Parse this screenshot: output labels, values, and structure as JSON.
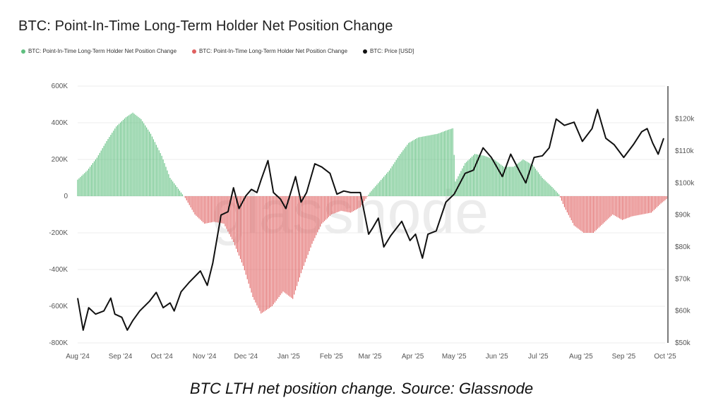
{
  "title": "BTC: Point-In-Time Long-Term Holder Net Position Change",
  "caption": "BTC LTH net position change. Source: Glassnode",
  "watermark": "glassnode",
  "colors": {
    "positive": "#5fbf7f",
    "negative": "#e06060",
    "price": "#111111"
  },
  "chart_data": {
    "type": "bar",
    "title": "BTC: Point-In-Time Long-Term Holder Net Position Change",
    "x_ticks": [
      "Aug '24",
      "Sep '24",
      "Oct '24",
      "Nov '24",
      "Dec '24",
      "Jan '25",
      "Feb '25",
      "Mar '25",
      "Apr '25",
      "May '25",
      "Jun '25",
      "Jul '25",
      "Aug '25",
      "Sep '25",
      "Oct '25"
    ],
    "left_axis": {
      "ticks": [
        "600K",
        "400K",
        "200K",
        "0",
        "-200K",
        "-400K",
        "-600K",
        "-800K"
      ],
      "range": [
        -800000,
        600000
      ]
    },
    "right_axis": {
      "ticks": [
        "$120k",
        "$110k",
        "$100k",
        "$90k",
        "$80k",
        "$70k",
        "$60k",
        "$50k"
      ],
      "range": [
        50000,
        125000
      ]
    },
    "legend": [
      "BTC: Point-In-Time Long-Term Holder Net Position Change",
      "BTC: Point-In-Time Long-Term Holder Net Position Change",
      "BTC: Price [USD]"
    ],
    "legend_position": "top-left",
    "grid": true,
    "series": [
      {
        "name": "BTC: Point-In-Time Long-Term Holder Net Position Change",
        "axis": "left",
        "points": [
          [
            "2024-08-01",
            90000
          ],
          [
            "2024-08-08",
            140000
          ],
          [
            "2024-08-15",
            210000
          ],
          [
            "2024-08-22",
            300000
          ],
          [
            "2024-08-29",
            380000
          ],
          [
            "2024-09-05",
            430000
          ],
          [
            "2024-09-10",
            455000
          ],
          [
            "2024-09-16",
            420000
          ],
          [
            "2024-09-23",
            340000
          ],
          [
            "2024-10-01",
            220000
          ],
          [
            "2024-10-07",
            100000
          ],
          [
            "2024-10-14",
            30000
          ],
          [
            "2024-10-18",
            -10000
          ],
          [
            "2024-10-25",
            -100000
          ],
          [
            "2024-11-01",
            -150000
          ],
          [
            "2024-11-08",
            -140000
          ],
          [
            "2024-11-15",
            -150000
          ],
          [
            "2024-11-22",
            -250000
          ],
          [
            "2024-11-29",
            -380000
          ],
          [
            "2024-12-06",
            -550000
          ],
          [
            "2024-12-12",
            -640000
          ],
          [
            "2024-12-20",
            -600000
          ],
          [
            "2024-12-28",
            -520000
          ],
          [
            "2025-01-04",
            -560000
          ],
          [
            "2025-01-10",
            -420000
          ],
          [
            "2025-01-18",
            -260000
          ],
          [
            "2025-01-25",
            -150000
          ],
          [
            "2025-02-01",
            -100000
          ],
          [
            "2025-02-08",
            -80000
          ],
          [
            "2025-02-15",
            -90000
          ],
          [
            "2025-02-22",
            -60000
          ],
          [
            "2025-03-01",
            20000
          ],
          [
            "2025-03-08",
            80000
          ],
          [
            "2025-03-15",
            140000
          ],
          [
            "2025-03-22",
            220000
          ],
          [
            "2025-03-29",
            290000
          ],
          [
            "2025-04-05",
            320000
          ],
          [
            "2025-04-12",
            330000
          ],
          [
            "2025-04-19",
            340000
          ],
          [
            "2025-04-26",
            360000
          ],
          [
            "2025-04-30",
            370000
          ],
          [
            "2025-05-02",
            80000
          ],
          [
            "2025-05-09",
            180000
          ],
          [
            "2025-05-16",
            230000
          ],
          [
            "2025-05-23",
            220000
          ],
          [
            "2025-05-30",
            200000
          ],
          [
            "2025-06-06",
            160000
          ],
          [
            "2025-06-13",
            160000
          ],
          [
            "2025-06-20",
            200000
          ],
          [
            "2025-06-27",
            170000
          ],
          [
            "2025-07-04",
            100000
          ],
          [
            "2025-07-11",
            50000
          ],
          [
            "2025-07-16",
            10000
          ],
          [
            "2025-07-20",
            -60000
          ],
          [
            "2025-07-27",
            -160000
          ],
          [
            "2025-08-03",
            -200000
          ],
          [
            "2025-08-10",
            -200000
          ],
          [
            "2025-08-17",
            -150000
          ],
          [
            "2025-08-24",
            -100000
          ],
          [
            "2025-08-31",
            -130000
          ],
          [
            "2025-09-07",
            -110000
          ],
          [
            "2025-09-14",
            -100000
          ],
          [
            "2025-09-21",
            -90000
          ],
          [
            "2025-09-28",
            -40000
          ],
          [
            "2025-10-03",
            -10000
          ]
        ]
      },
      {
        "name": "BTC: Price [USD]",
        "axis": "right",
        "points": [
          [
            "2024-08-01",
            64000
          ],
          [
            "2024-08-05",
            54000
          ],
          [
            "2024-08-09",
            61000
          ],
          [
            "2024-08-14",
            59000
          ],
          [
            "2024-08-20",
            60000
          ],
          [
            "2024-08-25",
            64000
          ],
          [
            "2024-08-28",
            59000
          ],
          [
            "2024-09-02",
            58000
          ],
          [
            "2024-09-06",
            54000
          ],
          [
            "2024-09-10",
            57000
          ],
          [
            "2024-09-15",
            60000
          ],
          [
            "2024-09-22",
            63000
          ],
          [
            "2024-09-27",
            65800
          ],
          [
            "2024-10-02",
            61000
          ],
          [
            "2024-10-07",
            62500
          ],
          [
            "2024-10-10",
            60000
          ],
          [
            "2024-10-15",
            66000
          ],
          [
            "2024-10-21",
            69000
          ],
          [
            "2024-10-29",
            72500
          ],
          [
            "2024-11-03",
            68000
          ],
          [
            "2024-11-07",
            75000
          ],
          [
            "2024-11-13",
            90000
          ],
          [
            "2024-11-18",
            91000
          ],
          [
            "2024-11-22",
            98500
          ],
          [
            "2024-11-26",
            92000
          ],
          [
            "2024-12-01",
            96000
          ],
          [
            "2024-12-05",
            98000
          ],
          [
            "2024-12-09",
            97000
          ],
          [
            "2024-12-12",
            101000
          ],
          [
            "2024-12-17",
            107000
          ],
          [
            "2024-12-21",
            97000
          ],
          [
            "2024-12-26",
            95000
          ],
          [
            "2024-12-30",
            92000
          ],
          [
            "2025-01-06",
            102000
          ],
          [
            "2025-01-10",
            94000
          ],
          [
            "2025-01-14",
            97000
          ],
          [
            "2025-01-20",
            106000
          ],
          [
            "2025-01-25",
            105000
          ],
          [
            "2025-01-31",
            103000
          ],
          [
            "2025-02-05",
            96500
          ],
          [
            "2025-02-10",
            97500
          ],
          [
            "2025-02-15",
            97000
          ],
          [
            "2025-02-22",
            97000
          ],
          [
            "2025-02-28",
            84000
          ],
          [
            "2025-03-03",
            86000
          ],
          [
            "2025-03-07",
            89000
          ],
          [
            "2025-03-11",
            80000
          ],
          [
            "2025-03-16",
            83500
          ],
          [
            "2025-03-24",
            88000
          ],
          [
            "2025-03-30",
            82000
          ],
          [
            "2025-04-03",
            84000
          ],
          [
            "2025-04-08",
            76500
          ],
          [
            "2025-04-12",
            84000
          ],
          [
            "2025-04-18",
            85000
          ],
          [
            "2025-04-25",
            94000
          ],
          [
            "2025-05-01",
            96500
          ],
          [
            "2025-05-09",
            103000
          ],
          [
            "2025-05-15",
            104000
          ],
          [
            "2025-05-22",
            111000
          ],
          [
            "2025-05-28",
            108000
          ],
          [
            "2025-06-05",
            102000
          ],
          [
            "2025-06-11",
            109000
          ],
          [
            "2025-06-17",
            104000
          ],
          [
            "2025-06-22",
            100000
          ],
          [
            "2025-06-28",
            108000
          ],
          [
            "2025-07-04",
            108500
          ],
          [
            "2025-07-09",
            111000
          ],
          [
            "2025-07-14",
            120000
          ],
          [
            "2025-07-20",
            118000
          ],
          [
            "2025-07-27",
            119000
          ],
          [
            "2025-08-02",
            113000
          ],
          [
            "2025-08-09",
            117000
          ],
          [
            "2025-08-13",
            123000
          ],
          [
            "2025-08-19",
            114000
          ],
          [
            "2025-08-25",
            112000
          ],
          [
            "2025-09-01",
            108000
          ],
          [
            "2025-09-08",
            112000
          ],
          [
            "2025-09-14",
            116000
          ],
          [
            "2025-09-18",
            117000
          ],
          [
            "2025-09-22",
            112500
          ],
          [
            "2025-09-26",
            109000
          ],
          [
            "2025-09-30",
            114000
          ]
        ]
      }
    ]
  }
}
